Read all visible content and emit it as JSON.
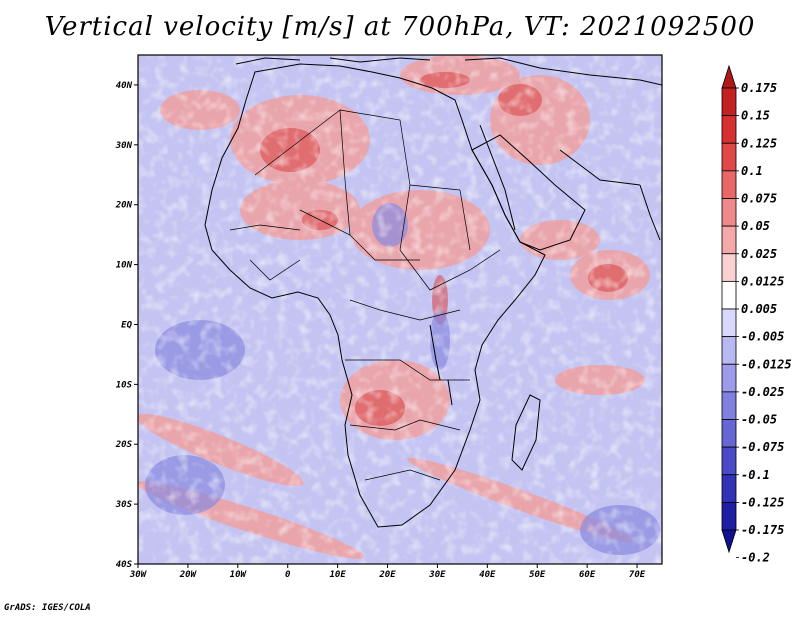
{
  "title": "Vertical velocity [m/s] at 700hPa, VT: 2021092500",
  "credit": "GrADS: IGES/COLA",
  "map": {
    "lat_labels": [
      "40N",
      "30N",
      "20N",
      "10N",
      "EQ",
      "10S",
      "20S",
      "30S",
      "40S"
    ],
    "lon_labels": [
      "30W",
      "20W",
      "10W",
      "0",
      "10E",
      "20E",
      "30E",
      "40E",
      "50E",
      "60E",
      "70E"
    ],
    "lat_range": [
      -40,
      45
    ],
    "lon_range": [
      -30,
      75
    ]
  },
  "colorbar": {
    "labels": [
      "0.175",
      "0.15",
      "0.125",
      "0.1",
      "0.075",
      "0.05",
      "0.025",
      "0.0125",
      "0.005",
      "-0.005",
      "-0.0125",
      "-0.025",
      "-0.05",
      "-0.075",
      "-0.1",
      "-0.125",
      "-0.175",
      "-0.2"
    ],
    "colors": [
      "#b01818",
      "#c42020",
      "#d63030",
      "#e04848",
      "#e86868",
      "#ef8888",
      "#f5a8a8",
      "#fbd0d0",
      "#ffffff",
      "#d8d8fa",
      "#b8b8f2",
      "#9c9cea",
      "#8080e0",
      "#6666d4",
      "#4a4ac6",
      "#3232b6",
      "#1e1ea4",
      "#101090"
    ]
  }
}
